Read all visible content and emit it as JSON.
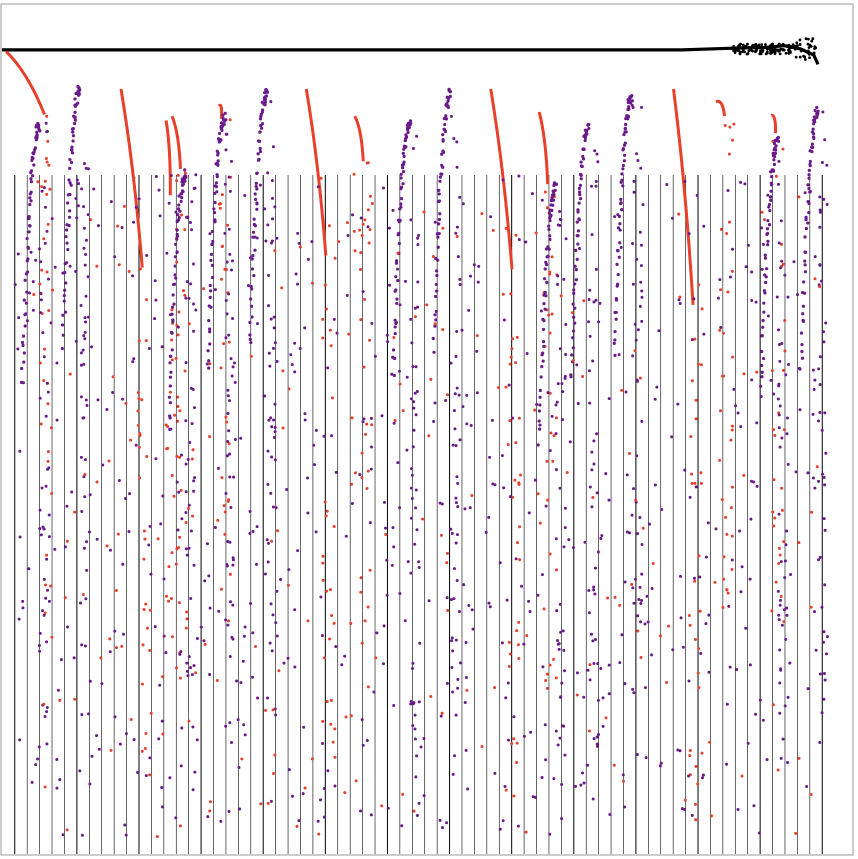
{
  "chart_data": {
    "type": "scatter",
    "title": "",
    "xlabel": "",
    "ylabel": "",
    "xlim": [
      0,
      100
    ],
    "ylim": [
      0,
      100
    ],
    "grid": false,
    "legend": "none",
    "colors": {
      "baseline": "#000000",
      "decay": "#e8402a",
      "recovery": "#6a1a8a",
      "vertical_lines": "#000000",
      "frame": "#999999"
    },
    "series": [
      {
        "role": "baseline",
        "description_points": [
          [
            0,
            94.6
          ],
          [
            10,
            94.6
          ],
          [
            20,
            94.6
          ],
          [
            30,
            94.6
          ],
          [
            40,
            94.6
          ],
          [
            50,
            94.6
          ],
          [
            60,
            94.6
          ],
          [
            70,
            94.6
          ],
          [
            80,
            94.6
          ],
          [
            86,
            94.8
          ],
          [
            90,
            94.9
          ],
          [
            92,
            95.1
          ],
          [
            94,
            94.7
          ],
          [
            95.5,
            94.0
          ],
          [
            96,
            92.9
          ]
        ]
      },
      {
        "role": "decay",
        "segments": [
          {
            "x": [
              0.5,
              5.0
            ],
            "y": [
              94.4,
              87.0
            ]
          },
          {
            "x": [
              14.0,
              16.5
            ],
            "y": [
              90.0,
              69.0
            ]
          },
          {
            "x": [
              19.3,
              19.8
            ],
            "y": [
              86.3,
              77.5
            ]
          },
          {
            "x": [
              20.0,
              21.0
            ],
            "y": [
              86.8,
              80.6
            ]
          },
          {
            "x": [
              25.5,
              25.8
            ],
            "y": [
              88.0,
              86.5
            ]
          },
          {
            "x": [
              35.8,
              38.1
            ],
            "y": [
              90.0,
              70.4
            ]
          },
          {
            "x": [
              41.5,
              42.5
            ],
            "y": [
              86.8,
              81.5
            ]
          },
          {
            "x": [
              57.5,
              60.0
            ],
            "y": [
              90.0,
              68.8
            ]
          },
          {
            "x": [
              63.2,
              64.2
            ],
            "y": [
              87.3,
              78.8
            ]
          },
          {
            "x": [
              79.0,
              81.3
            ],
            "y": [
              90.0,
              64.6
            ]
          },
          {
            "x": [
              84.0,
              85.0
            ],
            "y": [
              88.5,
              86.8
            ]
          },
          {
            "x": [
              90.5,
              91.0
            ],
            "y": [
              86.9,
              84.8
            ]
          }
        ]
      },
      {
        "role": "recovery",
        "peaks": [
          {
            "x": 4.0,
            "y": 86.2
          },
          {
            "x": 8.8,
            "y": 90.5
          },
          {
            "x": 21.2,
            "y": 80.5
          },
          {
            "x": 25.8,
            "y": 87.2
          },
          {
            "x": 30.8,
            "y": 90.2
          },
          {
            "x": 47.6,
            "y": 86.5
          },
          {
            "x": 52.4,
            "y": 90.2
          },
          {
            "x": 64.8,
            "y": 79.1
          },
          {
            "x": 68.6,
            "y": 86.2
          },
          {
            "x": 73.7,
            "y": 89.6
          },
          {
            "x": 90.9,
            "y": 84.5
          },
          {
            "x": 95.6,
            "y": 88.0
          }
        ]
      }
    ],
    "vertical_lines_x_range": [
      1.5,
      96.5
    ],
    "vertical_line_count": 66
  }
}
